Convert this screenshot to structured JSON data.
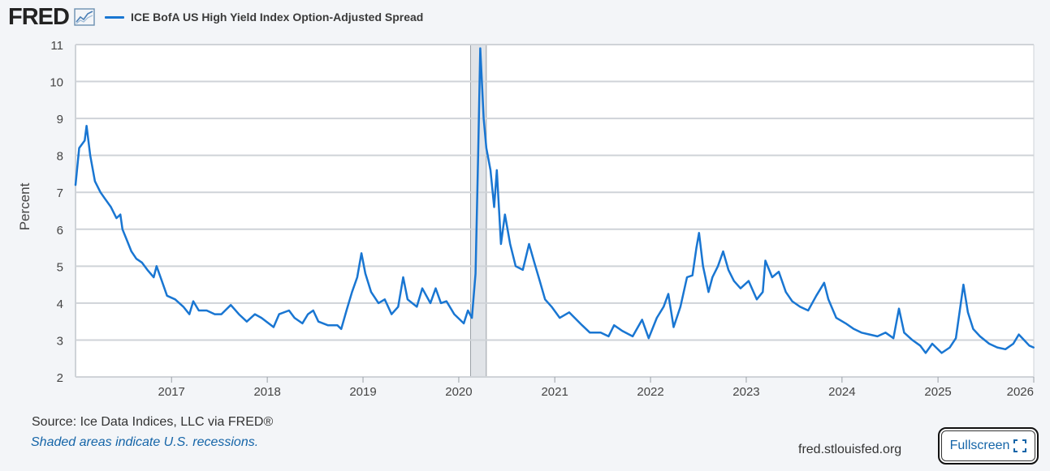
{
  "header": {
    "logo_text": "FRED",
    "logo_icon": "line-chart-icon"
  },
  "footer": {
    "source": "Source: Ice Data Indices, LLC via FRED®",
    "recession_note": "Shaded areas indicate U.S. recessions.",
    "site": "fred.stlouisfed.org",
    "fullscreen_label": "Fullscreen",
    "fullscreen_icon": "expand-corners-icon"
  },
  "colors": {
    "series": "#1976d2",
    "recession": "#e1e4e8",
    "grid": "#cfd3d8",
    "plot_bg": "#ffffff"
  },
  "chart_data": {
    "type": "line",
    "title": "",
    "xlabel": "",
    "ylabel": "Percent",
    "ylim": [
      2,
      11
    ],
    "xlim": [
      "2016-01-01",
      "2026-01-01"
    ],
    "x_ticks": [
      "2017",
      "2018",
      "2019",
      "2020",
      "2021",
      "2022",
      "2023",
      "2024",
      "2025",
      "2026"
    ],
    "y_ticks": [
      2,
      3,
      4,
      5,
      6,
      7,
      8,
      9,
      10,
      11
    ],
    "grid": true,
    "legend": "top-left",
    "recessions": [
      {
        "start": "2020-02-15",
        "end": "2020-04-15"
      }
    ],
    "series": [
      {
        "name": "ICE BofA US High Yield Index Option-Adjusted Spread",
        "color": "#1976d2",
        "points": [
          [
            "2016-01-01",
            7.2
          ],
          [
            "2016-01-15",
            8.2
          ],
          [
            "2016-02-05",
            8.4
          ],
          [
            "2016-02-12",
            8.8
          ],
          [
            "2016-02-26",
            8.0
          ],
          [
            "2016-03-15",
            7.3
          ],
          [
            "2016-04-05",
            7.0
          ],
          [
            "2016-04-25",
            6.8
          ],
          [
            "2016-05-15",
            6.6
          ],
          [
            "2016-06-05",
            6.3
          ],
          [
            "2016-06-20",
            6.4
          ],
          [
            "2016-06-28",
            6.0
          ],
          [
            "2016-07-15",
            5.7
          ],
          [
            "2016-08-01",
            5.4
          ],
          [
            "2016-08-20",
            5.2
          ],
          [
            "2016-09-10",
            5.1
          ],
          [
            "2016-10-01",
            4.9
          ],
          [
            "2016-10-25",
            4.7
          ],
          [
            "2016-11-05",
            5.0
          ],
          [
            "2016-11-25",
            4.6
          ],
          [
            "2016-12-15",
            4.2
          ],
          [
            "2017-01-15",
            4.1
          ],
          [
            "2017-02-15",
            3.9
          ],
          [
            "2017-03-10",
            3.7
          ],
          [
            "2017-03-25",
            4.05
          ],
          [
            "2017-04-15",
            3.8
          ],
          [
            "2017-05-15",
            3.8
          ],
          [
            "2017-06-15",
            3.7
          ],
          [
            "2017-07-10",
            3.7
          ],
          [
            "2017-08-15",
            3.95
          ],
          [
            "2017-09-15",
            3.7
          ],
          [
            "2017-10-15",
            3.5
          ],
          [
            "2017-11-15",
            3.7
          ],
          [
            "2017-12-10",
            3.6
          ],
          [
            "2018-01-25",
            3.35
          ],
          [
            "2018-02-15",
            3.7
          ],
          [
            "2018-03-25",
            3.8
          ],
          [
            "2018-04-15",
            3.6
          ],
          [
            "2018-05-15",
            3.45
          ],
          [
            "2018-06-05",
            3.7
          ],
          [
            "2018-06-25",
            3.8
          ],
          [
            "2018-07-15",
            3.5
          ],
          [
            "2018-08-20",
            3.4
          ],
          [
            "2018-09-25",
            3.4
          ],
          [
            "2018-10-10",
            3.3
          ],
          [
            "2018-10-30",
            3.8
          ],
          [
            "2018-11-20",
            4.3
          ],
          [
            "2018-12-10",
            4.7
          ],
          [
            "2018-12-26",
            5.35
          ],
          [
            "2019-01-10",
            4.8
          ],
          [
            "2019-02-01",
            4.3
          ],
          [
            "2019-03-01",
            4.0
          ],
          [
            "2019-03-25",
            4.1
          ],
          [
            "2019-04-20",
            3.7
          ],
          [
            "2019-05-15",
            3.9
          ],
          [
            "2019-06-03",
            4.7
          ],
          [
            "2019-06-20",
            4.1
          ],
          [
            "2019-07-25",
            3.9
          ],
          [
            "2019-08-15",
            4.4
          ],
          [
            "2019-09-15",
            4.0
          ],
          [
            "2019-10-05",
            4.4
          ],
          [
            "2019-10-25",
            4.0
          ],
          [
            "2019-11-15",
            4.05
          ],
          [
            "2019-12-15",
            3.7
          ],
          [
            "2020-01-20",
            3.45
          ],
          [
            "2020-02-05",
            3.8
          ],
          [
            "2020-02-20",
            3.6
          ],
          [
            "2020-03-05",
            4.8
          ],
          [
            "2020-03-15",
            8.0
          ],
          [
            "2020-03-23",
            10.9
          ],
          [
            "2020-04-05",
            9.0
          ],
          [
            "2020-04-15",
            8.2
          ],
          [
            "2020-05-01",
            7.6
          ],
          [
            "2020-05-15",
            6.6
          ],
          [
            "2020-05-25",
            7.6
          ],
          [
            "2020-06-10",
            5.6
          ],
          [
            "2020-06-25",
            6.4
          ],
          [
            "2020-07-15",
            5.6
          ],
          [
            "2020-08-05",
            5.0
          ],
          [
            "2020-09-01",
            4.9
          ],
          [
            "2020-09-25",
            5.6
          ],
          [
            "2020-10-15",
            5.1
          ],
          [
            "2020-11-05",
            4.6
          ],
          [
            "2020-11-25",
            4.1
          ],
          [
            "2020-12-20",
            3.9
          ],
          [
            "2021-01-20",
            3.6
          ],
          [
            "2021-02-25",
            3.75
          ],
          [
            "2021-04-15",
            3.4
          ],
          [
            "2021-05-15",
            3.2
          ],
          [
            "2021-06-25",
            3.2
          ],
          [
            "2021-07-25",
            3.1
          ],
          [
            "2021-08-15",
            3.4
          ],
          [
            "2021-09-15",
            3.25
          ],
          [
            "2021-10-25",
            3.1
          ],
          [
            "2021-11-30",
            3.55
          ],
          [
            "2021-12-25",
            3.05
          ],
          [
            "2022-01-25",
            3.6
          ],
          [
            "2022-02-20",
            3.9
          ],
          [
            "2022-03-10",
            4.25
          ],
          [
            "2022-03-30",
            3.35
          ],
          [
            "2022-04-25",
            3.9
          ],
          [
            "2022-05-20",
            4.7
          ],
          [
            "2022-06-10",
            4.75
          ],
          [
            "2022-06-25",
            5.5
          ],
          [
            "2022-07-05",
            5.9
          ],
          [
            "2022-07-20",
            5.0
          ],
          [
            "2022-08-10",
            4.3
          ],
          [
            "2022-08-25",
            4.7
          ],
          [
            "2022-09-15",
            5.0
          ],
          [
            "2022-10-05",
            5.4
          ],
          [
            "2022-10-25",
            4.9
          ],
          [
            "2022-11-15",
            4.6
          ],
          [
            "2022-12-10",
            4.4
          ],
          [
            "2023-01-10",
            4.6
          ],
          [
            "2023-02-10",
            4.1
          ],
          [
            "2023-03-05",
            4.3
          ],
          [
            "2023-03-15",
            5.15
          ],
          [
            "2023-04-10",
            4.7
          ],
          [
            "2023-05-05",
            4.85
          ],
          [
            "2023-06-01",
            4.3
          ],
          [
            "2023-06-25",
            4.05
          ],
          [
            "2023-07-25",
            3.9
          ],
          [
            "2023-08-25",
            3.8
          ],
          [
            "2023-09-25",
            4.2
          ],
          [
            "2023-10-25",
            4.55
          ],
          [
            "2023-11-10",
            4.1
          ],
          [
            "2023-12-10",
            3.6
          ],
          [
            "2024-01-15",
            3.45
          ],
          [
            "2024-02-15",
            3.3
          ],
          [
            "2024-03-15",
            3.2
          ],
          [
            "2024-04-15",
            3.15
          ],
          [
            "2024-05-15",
            3.1
          ],
          [
            "2024-06-15",
            3.2
          ],
          [
            "2024-07-15",
            3.05
          ],
          [
            "2024-08-05",
            3.85
          ],
          [
            "2024-08-25",
            3.2
          ],
          [
            "2024-09-25",
            3.0
          ],
          [
            "2024-10-25",
            2.85
          ],
          [
            "2024-11-15",
            2.65
          ],
          [
            "2024-12-10",
            2.9
          ],
          [
            "2025-01-15",
            2.65
          ],
          [
            "2025-02-15",
            2.8
          ],
          [
            "2025-03-10",
            3.05
          ],
          [
            "2025-04-08",
            4.5
          ],
          [
            "2025-04-25",
            3.75
          ],
          [
            "2025-05-15",
            3.3
          ],
          [
            "2025-06-10",
            3.1
          ],
          [
            "2025-07-15",
            2.9
          ],
          [
            "2025-08-15",
            2.8
          ],
          [
            "2025-09-15",
            2.75
          ],
          [
            "2025-10-15",
            2.9
          ],
          [
            "2025-11-05",
            3.15
          ],
          [
            "2025-11-25",
            3.0
          ],
          [
            "2025-12-15",
            2.85
          ],
          [
            "2025-12-31",
            2.8
          ]
        ]
      }
    ]
  }
}
